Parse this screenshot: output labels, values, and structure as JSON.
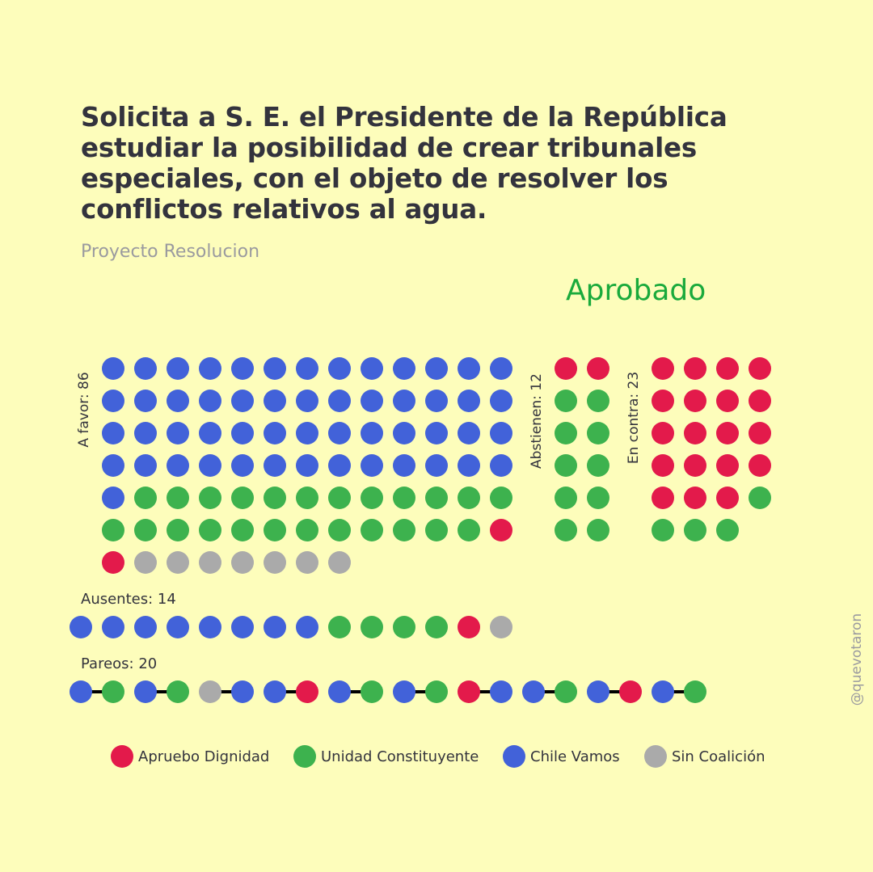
{
  "title": "Solicita a S. E. el Presidente de la República estudiar la posibilidad de crear tribunales especiales, con el objeto de resolver los conflictos relativos al agua.",
  "subtitle": "Proyecto Resolucion",
  "result": {
    "text": "Aprobado",
    "color": "#1aaa3c"
  },
  "credit": "@quevotaron",
  "colors": {
    "apruebo": "#e31a4b",
    "unidad": "#3db24e",
    "chile": "#4262d9",
    "sin": "#aaaaaa"
  },
  "chart_data": {
    "type": "dot",
    "groups": [
      {
        "label": "A favor: 86",
        "count": 86,
        "columns": 13,
        "composition": [
          {
            "coalition": "chile",
            "count": 53
          },
          {
            "coalition": "unidad",
            "count": 24
          },
          {
            "coalition": "apruebo",
            "count": 2
          },
          {
            "coalition": "sin",
            "count": 7
          }
        ]
      },
      {
        "label": "Abstienen: 12",
        "count": 12,
        "columns": 2,
        "composition": [
          {
            "coalition": "apruebo",
            "count": 2
          },
          {
            "coalition": "unidad",
            "count": 10
          }
        ]
      },
      {
        "label": "En contra: 23",
        "count": 23,
        "columns": 4,
        "composition": [
          {
            "coalition": "apruebo",
            "count": 19
          },
          {
            "coalition": "unidad",
            "count": 4
          }
        ]
      },
      {
        "label": "Ausentes: 14",
        "count": 14,
        "columns": 14,
        "composition": [
          {
            "coalition": "chile",
            "count": 8
          },
          {
            "coalition": "unidad",
            "count": 4
          },
          {
            "coalition": "apruebo",
            "count": 1
          },
          {
            "coalition": "sin",
            "count": 1
          }
        ]
      }
    ],
    "pareos": {
      "label": "Pareos: 20",
      "count": 20,
      "pairs": [
        [
          "chile",
          "unidad"
        ],
        [
          "chile",
          "unidad"
        ],
        [
          "sin",
          "chile"
        ],
        [
          "chile",
          "apruebo"
        ],
        [
          "chile",
          "unidad"
        ],
        [
          "chile",
          "unidad"
        ],
        [
          "apruebo",
          "chile"
        ],
        [
          "chile",
          "unidad"
        ],
        [
          "chile",
          "apruebo"
        ],
        [
          "chile",
          "unidad"
        ]
      ]
    },
    "legend": [
      {
        "key": "apruebo",
        "label": "Apruebo Dignidad"
      },
      {
        "key": "unidad",
        "label": "Unidad Constituyente"
      },
      {
        "key": "chile",
        "label": "Chile Vamos"
      },
      {
        "key": "sin",
        "label": "Sin Coalición"
      }
    ]
  }
}
